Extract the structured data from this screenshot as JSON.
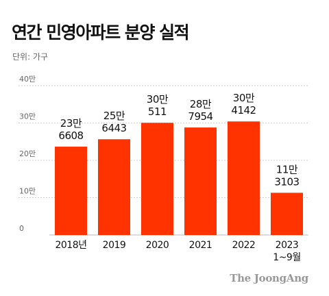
{
  "title": "연간 민영아파트 분양 실적",
  "unit_label": "단위: 가구",
  "credit": "The JoongAng",
  "colors": {
    "bar": "#ff3300",
    "grid": "#cccccc",
    "text": "#111111",
    "axis_text": "#666666"
  },
  "chart_data": {
    "type": "bar",
    "title": "연간 민영아파트 분양 실적",
    "ylabel": "",
    "xlabel": "",
    "ylim": [
      0,
      400000
    ],
    "y_ticks": [
      {
        "value": 0,
        "label": "0"
      },
      {
        "value": 100000,
        "label": "10만"
      },
      {
        "value": 200000,
        "label": "20만"
      },
      {
        "value": 300000,
        "label": "30만"
      },
      {
        "value": 400000,
        "label": "40만"
      }
    ],
    "grid": true,
    "categories": [
      {
        "label": "2018년",
        "sub": ""
      },
      {
        "label": "2019",
        "sub": ""
      },
      {
        "label": "2020",
        "sub": ""
      },
      {
        "label": "2021",
        "sub": ""
      },
      {
        "label": "2022",
        "sub": ""
      },
      {
        "label": "2023",
        "sub": "1~9월"
      }
    ],
    "values": [
      236608,
      256443,
      300511,
      287954,
      304142,
      113103
    ],
    "data_labels": [
      [
        "23만",
        "6608"
      ],
      [
        "25만",
        "6443"
      ],
      [
        "30만",
        "511"
      ],
      [
        "28만",
        "7954"
      ],
      [
        "30만",
        "4142"
      ],
      [
        "11만",
        "3103"
      ]
    ]
  }
}
